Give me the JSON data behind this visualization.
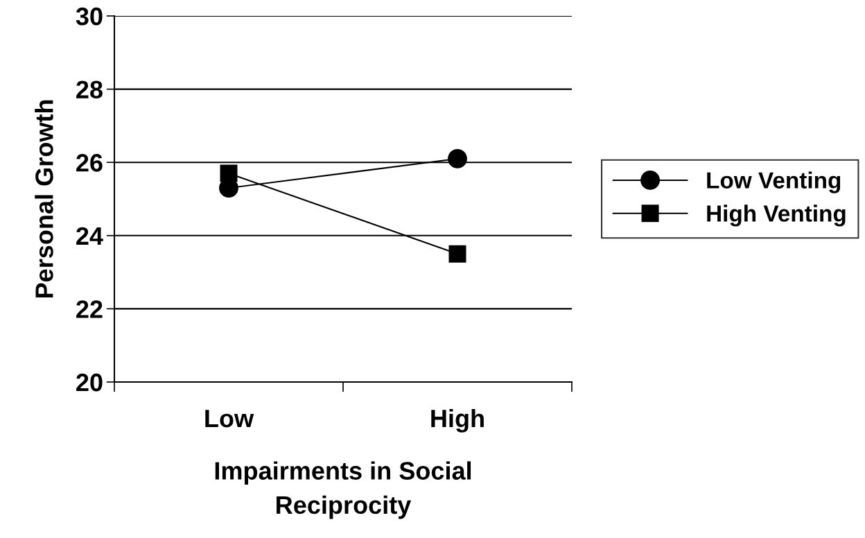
{
  "chart_data": {
    "type": "line",
    "xlabel": "Impairments in Social\nReciprocity",
    "ylabel": "Personal Growth",
    "categories": [
      "Low",
      "High"
    ],
    "series": [
      {
        "name": "Low Venting",
        "color": "#000000",
        "marker": "circle",
        "values": [
          25.3,
          26.1
        ]
      },
      {
        "name": "High Venting",
        "color": "#000000",
        "marker": "square",
        "values": [
          25.7,
          23.5
        ]
      }
    ],
    "ylim": [
      20,
      30
    ],
    "yticks": [
      20,
      22,
      24,
      26,
      28,
      30
    ],
    "grid": "y",
    "legend": "right",
    "line_style": "solid"
  }
}
